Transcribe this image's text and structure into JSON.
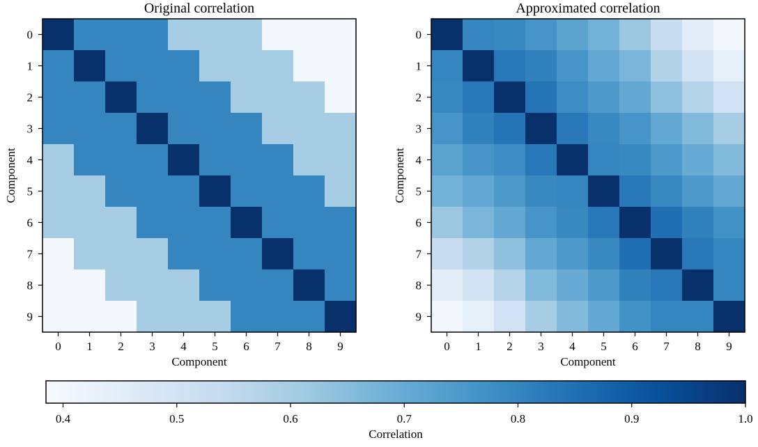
{
  "chart_data": [
    {
      "type": "heatmap",
      "title": "Original correlation",
      "xlabel": "Component",
      "ylabel": "Component",
      "x_ticks": [
        "0",
        "1",
        "2",
        "3",
        "4",
        "5",
        "6",
        "7",
        "8",
        "9"
      ],
      "y_ticks": [
        "0",
        "1",
        "2",
        "3",
        "4",
        "5",
        "6",
        "7",
        "8",
        "9"
      ],
      "colormap": "Blues",
      "values": [
        [
          1.0,
          0.8,
          0.8,
          0.8,
          0.6,
          0.6,
          0.6,
          0.4,
          0.4,
          0.4
        ],
        [
          0.8,
          1.0,
          0.8,
          0.8,
          0.8,
          0.6,
          0.6,
          0.6,
          0.4,
          0.4
        ],
        [
          0.8,
          0.8,
          1.0,
          0.8,
          0.8,
          0.8,
          0.6,
          0.6,
          0.6,
          0.4
        ],
        [
          0.8,
          0.8,
          0.8,
          1.0,
          0.8,
          0.8,
          0.8,
          0.6,
          0.6,
          0.6
        ],
        [
          0.6,
          0.8,
          0.8,
          0.8,
          1.0,
          0.8,
          0.8,
          0.8,
          0.6,
          0.6
        ],
        [
          0.6,
          0.6,
          0.8,
          0.8,
          0.8,
          1.0,
          0.8,
          0.8,
          0.8,
          0.6
        ],
        [
          0.6,
          0.6,
          0.6,
          0.8,
          0.8,
          0.8,
          1.0,
          0.8,
          0.8,
          0.8
        ],
        [
          0.4,
          0.6,
          0.6,
          0.6,
          0.8,
          0.8,
          0.8,
          1.0,
          0.8,
          0.8
        ],
        [
          0.4,
          0.4,
          0.6,
          0.6,
          0.6,
          0.8,
          0.8,
          0.8,
          1.0,
          0.8
        ],
        [
          0.4,
          0.4,
          0.4,
          0.6,
          0.6,
          0.6,
          0.8,
          0.8,
          0.8,
          1.0
        ]
      ]
    },
    {
      "type": "heatmap",
      "title": "Approximated correlation",
      "xlabel": "Component",
      "ylabel": "Component",
      "x_ticks": [
        "0",
        "1",
        "2",
        "3",
        "4",
        "5",
        "6",
        "7",
        "8",
        "9"
      ],
      "y_ticks": [
        "0",
        "1",
        "2",
        "3",
        "4",
        "5",
        "6",
        "7",
        "8",
        "9"
      ],
      "colormap": "Blues",
      "values": [
        [
          1.0,
          0.8,
          0.79,
          0.76,
          0.72,
          0.68,
          0.62,
          0.53,
          0.45,
          0.4
        ],
        [
          0.8,
          1.0,
          0.83,
          0.81,
          0.76,
          0.71,
          0.67,
          0.58,
          0.5,
          0.44
        ],
        [
          0.79,
          0.83,
          1.0,
          0.84,
          0.78,
          0.75,
          0.71,
          0.64,
          0.57,
          0.51
        ],
        [
          0.76,
          0.81,
          0.84,
          1.0,
          0.83,
          0.79,
          0.76,
          0.71,
          0.66,
          0.6
        ],
        [
          0.72,
          0.76,
          0.78,
          0.83,
          1.0,
          0.8,
          0.79,
          0.75,
          0.7,
          0.66
        ],
        [
          0.68,
          0.71,
          0.75,
          0.79,
          0.8,
          1.0,
          0.83,
          0.79,
          0.75,
          0.71
        ],
        [
          0.62,
          0.67,
          0.71,
          0.76,
          0.79,
          0.83,
          1.0,
          0.85,
          0.81,
          0.77
        ],
        [
          0.53,
          0.58,
          0.64,
          0.71,
          0.75,
          0.79,
          0.85,
          1.0,
          0.83,
          0.8
        ],
        [
          0.45,
          0.5,
          0.57,
          0.66,
          0.7,
          0.75,
          0.81,
          0.83,
          1.0,
          0.8
        ],
        [
          0.4,
          0.44,
          0.51,
          0.6,
          0.66,
          0.71,
          0.77,
          0.8,
          0.8,
          1.0
        ]
      ]
    },
    {
      "type": "colorbar",
      "label": "Correlation",
      "range": [
        0.385,
        1.0
      ],
      "ticks": [
        "0.4",
        "0.5",
        "0.6",
        "0.7",
        "0.8",
        "0.9",
        "1.0"
      ],
      "tick_values": [
        0.4,
        0.5,
        0.6,
        0.7,
        0.8,
        0.9,
        1.0
      ],
      "colormap": "Blues",
      "orientation": "horizontal"
    }
  ],
  "colors": {
    "blues_stops": [
      "#f7fbff",
      "#deebf7",
      "#c6dbef",
      "#9ecae1",
      "#6baed6",
      "#4292c6",
      "#2171b5",
      "#08519c",
      "#08306b"
    ]
  }
}
